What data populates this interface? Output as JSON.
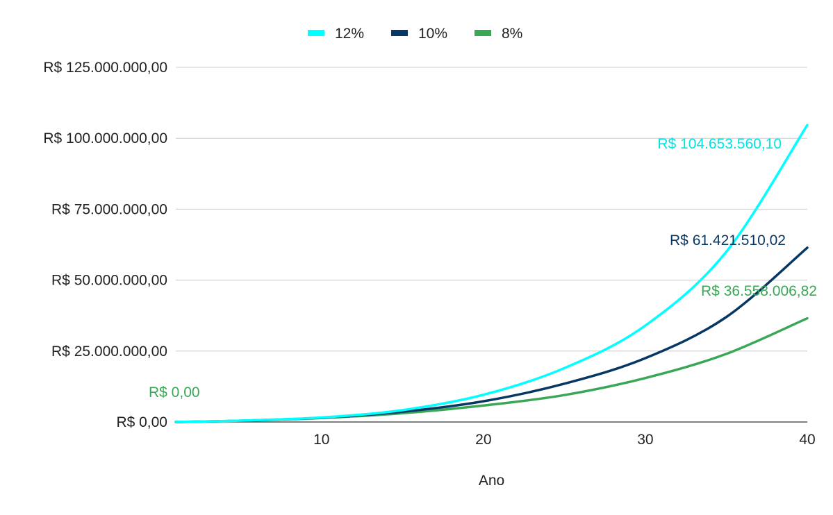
{
  "chart_data": {
    "type": "line",
    "xlabel": "Ano",
    "ylabel": "",
    "title": "",
    "xlim": [
      1,
      40
    ],
    "ylim": [
      0,
      125000000
    ],
    "x_ticks": [
      10,
      20,
      30,
      40
    ],
    "y_ticks": [
      0,
      25000000,
      50000000,
      75000000,
      100000000,
      125000000
    ],
    "y_tick_labels": [
      "R$ 0,00",
      "R$ 25.000.000,00",
      "R$ 50.000.000,00",
      "R$ 75.000.000,00",
      "R$ 100.000.000,00",
      "R$ 125.000.000,00"
    ],
    "grid": true,
    "legend_position": "top",
    "x": [
      1,
      5,
      10,
      15,
      20,
      25,
      30,
      35,
      40
    ],
    "series": [
      {
        "name": "12%",
        "color": "#00ffff",
        "values": [
          0,
          500000,
          1600000,
          4200000,
          9600000,
          19000000,
          34000000,
          60000000,
          104653560.1
        ],
        "end_label": "R$ 104.653.560,10"
      },
      {
        "name": "10%",
        "color": "#073763",
        "values": [
          0,
          450000,
          1500000,
          3600000,
          7300000,
          13500000,
          22500000,
          37000000,
          61421510.02
        ],
        "end_label": "R$ 61.421.510,02"
      },
      {
        "name": "8%",
        "color": "#3aa757",
        "values": [
          0,
          420000,
          1400000,
          3100000,
          5800000,
          9500000,
          15500000,
          24000000,
          36558006.82
        ],
        "end_label": "R$ 36.558.006,82",
        "start_label": "R$ 0,00"
      }
    ]
  }
}
